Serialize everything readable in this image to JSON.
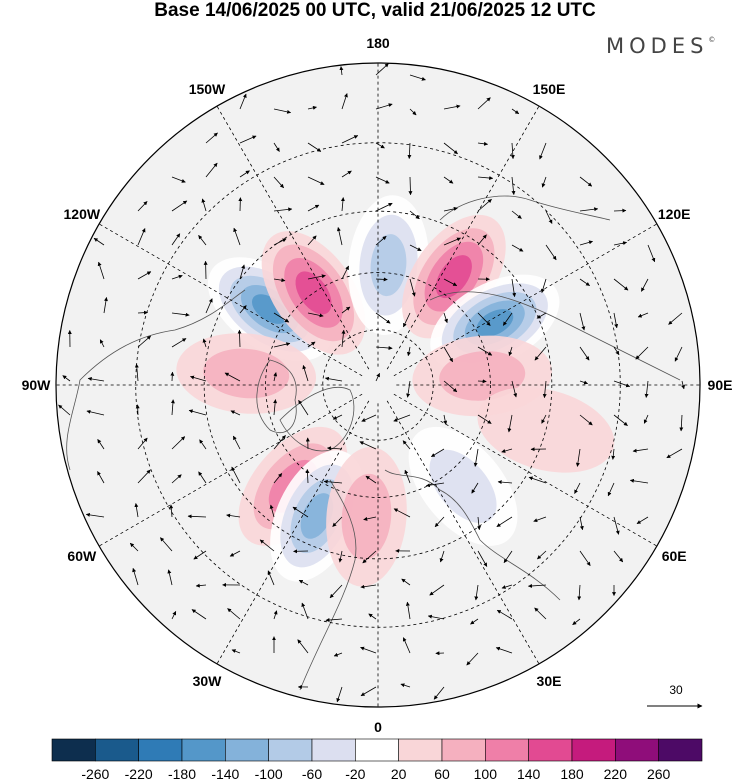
{
  "title": "Base 14/06/2025 00 UTC, valid 21/06/2025 12 UTC",
  "logo": "MODES",
  "logo_mark": "©",
  "longitude_labels": [
    {
      "text": "180",
      "lon": 180
    },
    {
      "text": "150E",
      "lon": 150
    },
    {
      "text": "120E",
      "lon": 120
    },
    {
      "text": "90E",
      "lon": 90
    },
    {
      "text": "60E",
      "lon": 60
    },
    {
      "text": "30E",
      "lon": 30
    },
    {
      "text": "0",
      "lon": 0
    },
    {
      "text": "30W",
      "lon": -30
    },
    {
      "text": "60W",
      "lon": -60
    },
    {
      "text": "90W",
      "lon": -90
    },
    {
      "text": "120W",
      "lon": -120
    },
    {
      "text": "150W",
      "lon": -150
    }
  ],
  "vector_reference": {
    "label": "30"
  },
  "colorbar": {
    "ticks": [
      "-260",
      "-220",
      "-180",
      "-140",
      "-100",
      "-60",
      "-20",
      "20",
      "60",
      "100",
      "140",
      "180",
      "220",
      "260"
    ],
    "colors": [
      "#0d2e4e",
      "#1a5a8c",
      "#2f7bb6",
      "#5497c9",
      "#84b2da",
      "#b3cbe7",
      "#dcdff0",
      "#ffffff",
      "#f9d6d8",
      "#f5b0bf",
      "#ef7fa8",
      "#e24a92",
      "#c51b7d",
      "#8f0d7a",
      "#4d0a66"
    ]
  },
  "anomaly_centers": [
    {
      "lon": -125,
      "lat": 55,
      "value": -180
    },
    {
      "lon": -145,
      "lat": 60,
      "value": 140
    },
    {
      "lon": 175,
      "lat": 58,
      "value": -110
    },
    {
      "lon": 145,
      "lat": 55,
      "value": 160
    },
    {
      "lon": 118,
      "lat": 55,
      "value": -170
    },
    {
      "lon": 95,
      "lat": 62,
      "value": 70
    },
    {
      "lon": -95,
      "lat": 55,
      "value": 80
    },
    {
      "lon": -40,
      "lat": 55,
      "value": 110
    },
    {
      "lon": -25,
      "lat": 52,
      "value": -150
    },
    {
      "lon": -5,
      "lat": 55,
      "value": 70
    },
    {
      "lon": 40,
      "lat": 55,
      "value": -60
    },
    {
      "lon": 75,
      "lat": 45,
      "value": 40
    }
  ]
}
